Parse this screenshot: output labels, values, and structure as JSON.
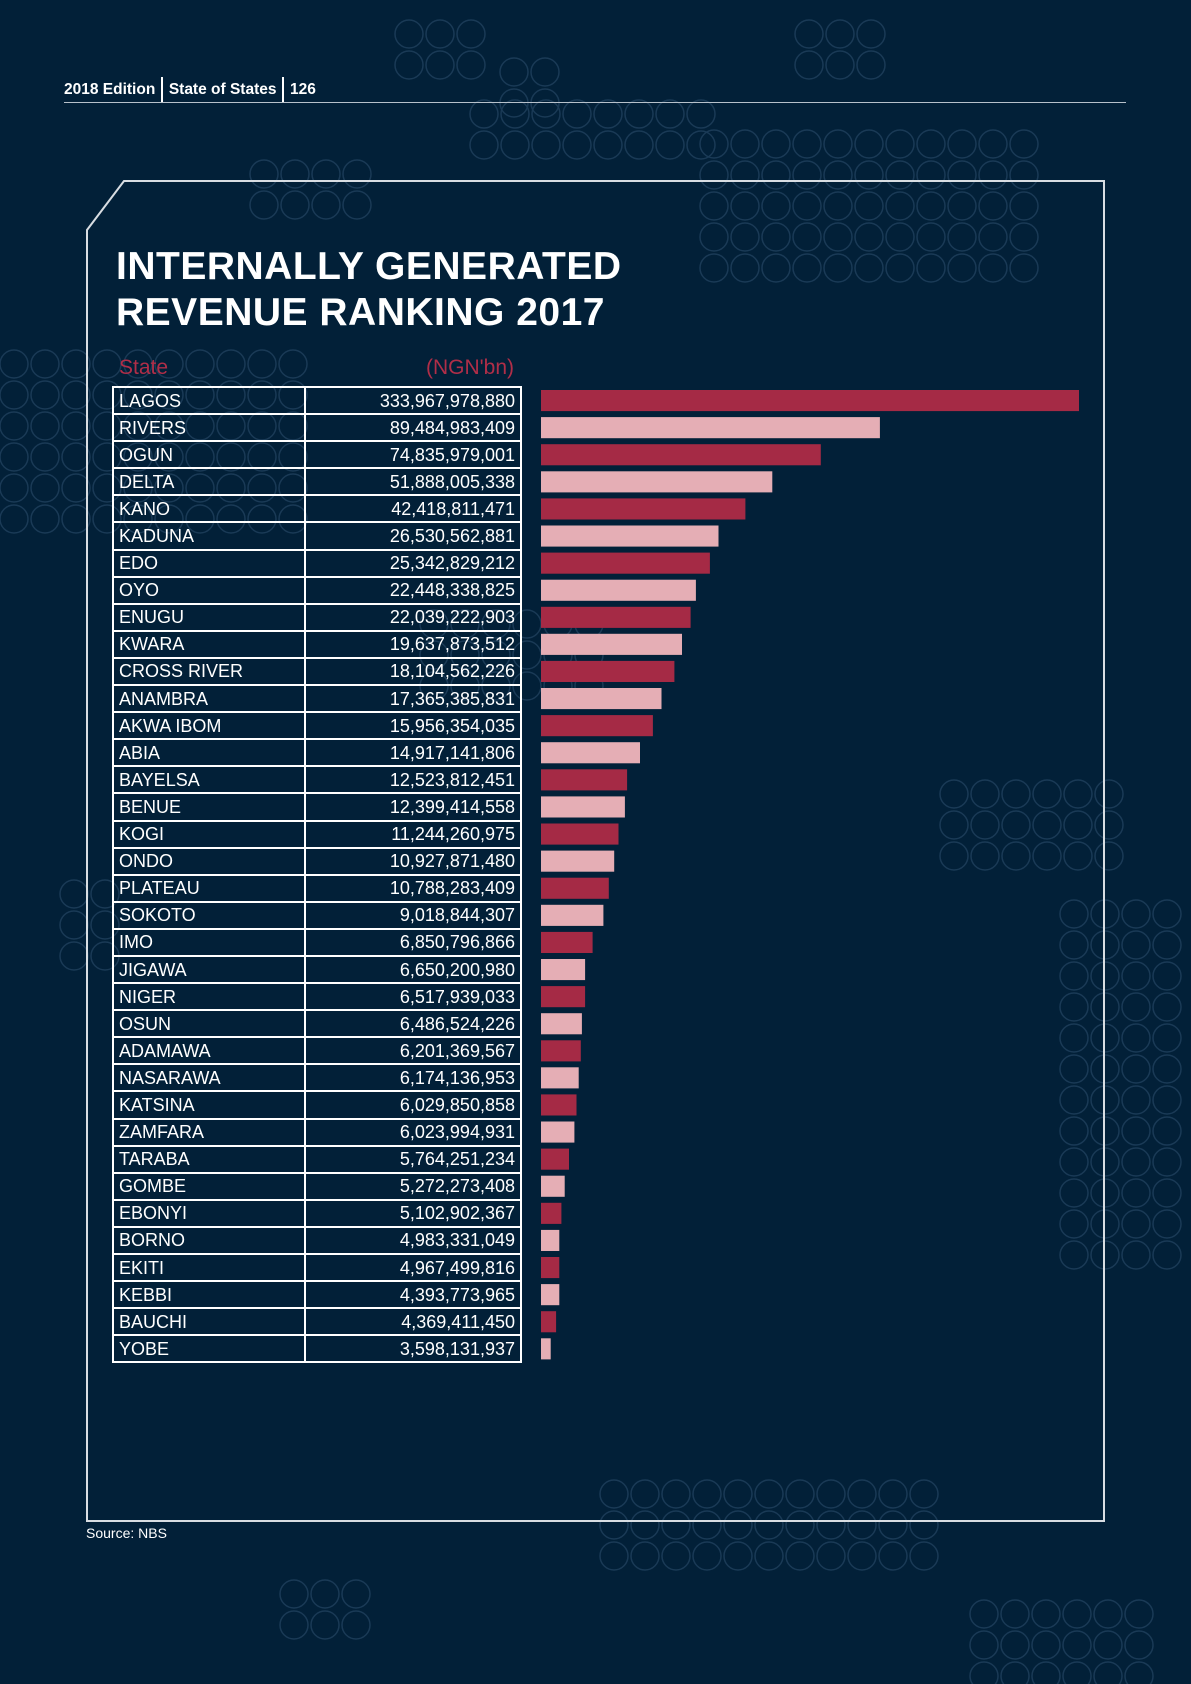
{
  "header": {
    "edition": "2018 Edition",
    "publication": "State of States",
    "page_number": "126"
  },
  "chart_data": {
    "type": "bar",
    "orientation": "horizontal",
    "title": "INTERNALLY GENERATED REVENUE RANKING 2017",
    "title_lines": [
      "INTERNALLY GENERATED",
      "REVENUE RANKING 2017"
    ],
    "column_headers": {
      "state": "State",
      "value": "(NGN'bn)"
    },
    "categories": [
      "LAGOS",
      "RIVERS",
      "OGUN",
      "DELTA",
      "KANO",
      "KADUNA",
      "EDO",
      "OYO",
      "ENUGU",
      "KWARA",
      "CROSS RIVER",
      "ANAMBRA",
      "AKWA IBOM",
      "ABIA",
      "BAYELSA",
      "BENUE",
      "KOGI",
      "ONDO",
      "PLATEAU",
      "SOKOTO",
      "IMO",
      "JIGAWA",
      "NIGER",
      "OSUN",
      "ADAMAWA",
      "NASARAWA",
      "KATSINA",
      "ZAMFARA",
      "TARABA",
      "GOMBE",
      "EBONYI",
      "BORNO",
      "EKITI",
      "KEBBI",
      "BAUCHI",
      "YOBE"
    ],
    "value_labels": [
      "333,967,978,880",
      "89,484,983,409",
      "74,835,979,001",
      "51,888,005,338",
      "42,418,811,471",
      "26,530,562,881",
      "25,342,829,212",
      "22,448,338,825",
      "22,039,222,903",
      "19,637,873,512",
      "18,104,562,226",
      "17,365,385,831",
      "15,956,354,035",
      "14,917,141,806",
      "12,523,812,451",
      "12,399,414,558",
      "11,244,260,975",
      "10,927,871,480",
      "10,788,283,409",
      "9,018,844,307",
      "6,850,796,866",
      "6,650,200,980",
      "6,517,939,033",
      "6,486,524,226",
      "6,201,369,567",
      "6,174,136,953",
      "6,029,850,858",
      "6,023,994,931",
      "5,764,251,234",
      "5,272,273,408",
      "5,102,902,367",
      "4,983,331,049",
      "4,967,499,816",
      "4,393,773,965",
      "4,369,411,450",
      "3,598,131,937"
    ],
    "values": [
      333967978880,
      89484983409,
      74835979001,
      51888005338,
      42418811471,
      26530562881,
      25342829212,
      22448338825,
      22039222903,
      19637873512,
      18104562226,
      17365385831,
      15956354035,
      14917141806,
      12523812451,
      12399414558,
      11244260975,
      10927871480,
      10788283409,
      9018844307,
      6850796866,
      6650200980,
      6517939033,
      6486524226,
      6201369567,
      6174136953,
      6029850858,
      6023994931,
      5764251234,
      5272273408,
      5102902367,
      4983331049,
      4967499816,
      4393773965,
      4369411450,
      3598131937
    ],
    "bar_length_share_of_max": [
      1.0,
      0.63,
      0.52,
      0.43,
      0.38,
      0.33,
      0.314,
      0.288,
      0.278,
      0.262,
      0.248,
      0.224,
      0.208,
      0.184,
      0.16,
      0.156,
      0.144,
      0.136,
      0.126,
      0.116,
      0.096,
      0.082,
      0.082,
      0.076,
      0.074,
      0.07,
      0.066,
      0.062,
      0.052,
      0.044,
      0.038,
      0.034,
      0.034,
      0.034,
      0.028,
      0.018
    ],
    "bar_colors": [
      "#a52a45",
      "#e5aeb5"
    ],
    "source": "Source: NBS"
  },
  "colors": {
    "background": "#022038",
    "accent": "#b02e48",
    "bar_dark": "#a52a45",
    "bar_light": "#e5aeb5",
    "frame": "#d8dde2"
  }
}
